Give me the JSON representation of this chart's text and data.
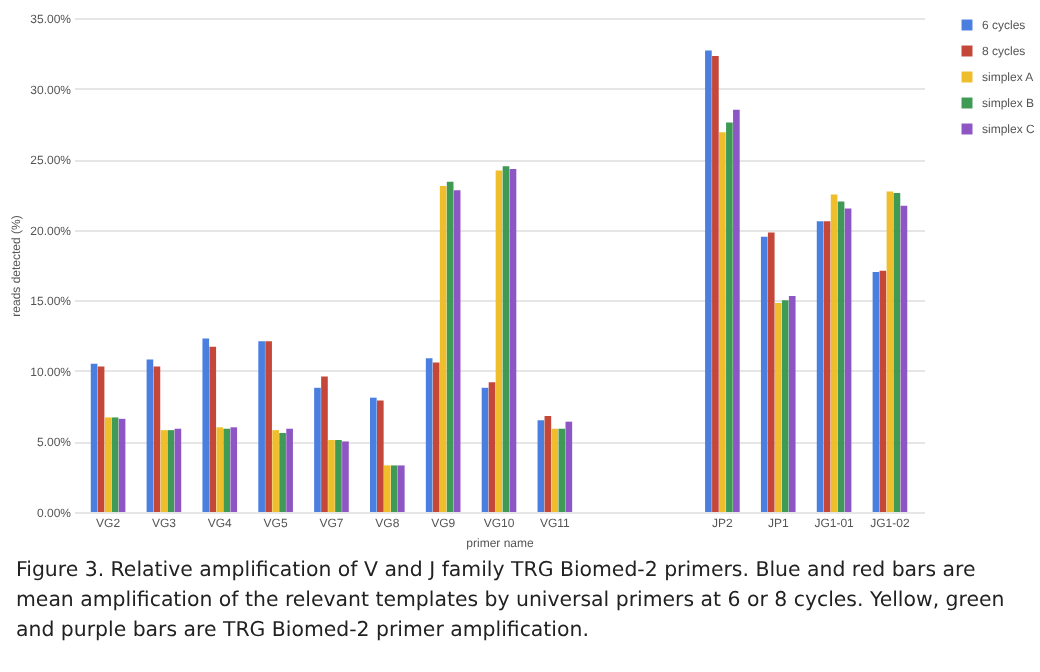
{
  "chart_data": {
    "type": "bar",
    "xlabel": "primer name",
    "ylabel": "reads detected (%)",
    "categories": [
      "VG2",
      "VG3",
      "VG4",
      "VG5",
      "VG7",
      "VG8",
      "VG9",
      "VG10",
      "VG11",
      null,
      null,
      "JP2",
      "JP1",
      "JG1-01",
      "JG1-02"
    ],
    "series": [
      {
        "name": "6 cycles",
        "color": "#4a7fe0",
        "values": [
          10.5,
          10.8,
          12.3,
          12.1,
          8.8,
          8.1,
          10.9,
          8.8,
          6.5,
          null,
          null,
          32.7,
          19.5,
          20.6,
          17.0
        ]
      },
      {
        "name": "8 cycles",
        "color": "#c4473a",
        "values": [
          10.3,
          10.3,
          11.7,
          12.1,
          9.6,
          7.9,
          10.6,
          9.2,
          6.8,
          null,
          null,
          32.3,
          19.8,
          20.6,
          17.1
        ]
      },
      {
        "name": "simplex A",
        "color": "#efbe2c",
        "values": [
          6.7,
          5.8,
          6.0,
          5.8,
          5.1,
          3.3,
          23.1,
          24.2,
          5.9,
          null,
          null,
          26.9,
          14.8,
          22.5,
          22.7
        ]
      },
      {
        "name": "simplex B",
        "color": "#3e9a55",
        "values": [
          6.7,
          5.8,
          5.9,
          5.6,
          5.1,
          3.3,
          23.4,
          24.5,
          5.9,
          null,
          null,
          27.6,
          15.0,
          22.0,
          22.6
        ]
      },
      {
        "name": "simplex C",
        "color": "#8e55c4",
        "values": [
          6.6,
          5.9,
          6.0,
          5.9,
          5.0,
          3.3,
          22.8,
          24.3,
          6.4,
          null,
          null,
          28.5,
          15.3,
          21.5,
          21.7
        ]
      }
    ],
    "ylim": [
      0,
      35
    ],
    "yticks": [
      {
        "value": 0,
        "label": "0.00%"
      },
      {
        "value": 5,
        "label": "5.00%"
      },
      {
        "value": 10,
        "label": "10.00%"
      },
      {
        "value": 15,
        "label": "15.00%"
      },
      {
        "value": 20,
        "label": "20.00%"
      },
      {
        "value": 25,
        "label": "25.00%"
      },
      {
        "value": 30,
        "label": "30.00%"
      },
      {
        "value": 35,
        "label": "35.00%"
      }
    ],
    "grid": "y",
    "legend": "top right",
    "annotations": [
      "Figure 3. Relative amplification of V and J family TRG Biomed-2 primers. Blue and red bars are mean amplification of the relevant templates by universal primers at 6 or 8 cycles. Yellow, green and purple bars are TRG Biomed-2 primer amplification."
    ]
  }
}
